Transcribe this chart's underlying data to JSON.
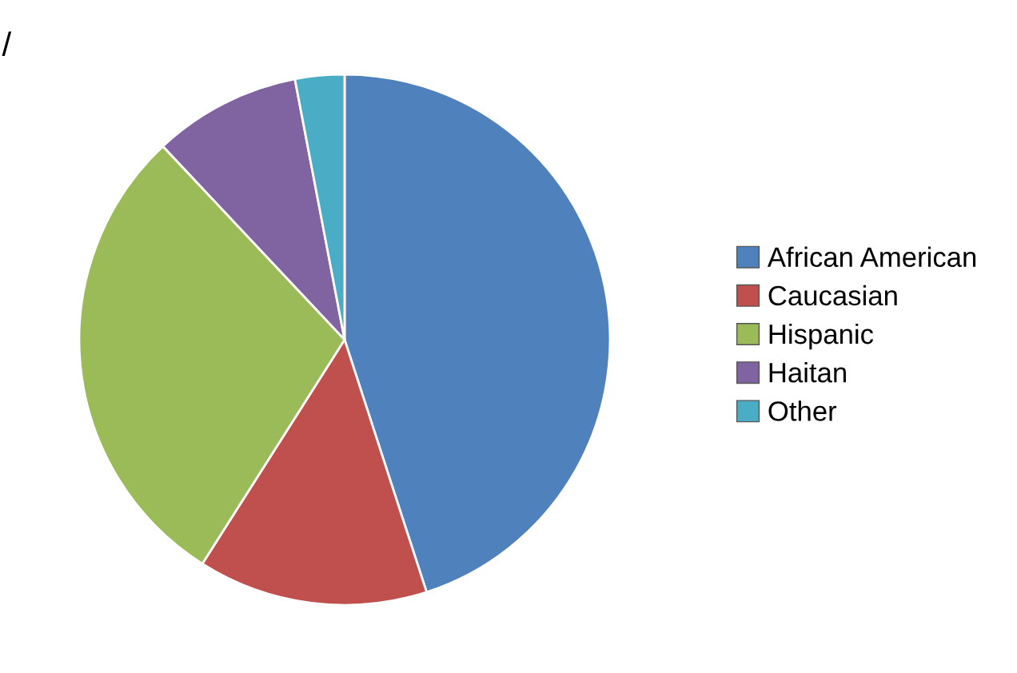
{
  "chart_data": {
    "type": "pie",
    "categories": [
      "African American",
      "Caucasian",
      "Hispanic",
      "Haitan",
      "Other"
    ],
    "values": [
      45,
      14,
      29,
      9,
      3
    ],
    "colors": [
      "#4f81bd",
      "#c0504d",
      "#9bbb59",
      "#8064a2",
      "#4bacc6"
    ],
    "legend": "right",
    "annotations": [
      "/"
    ]
  }
}
